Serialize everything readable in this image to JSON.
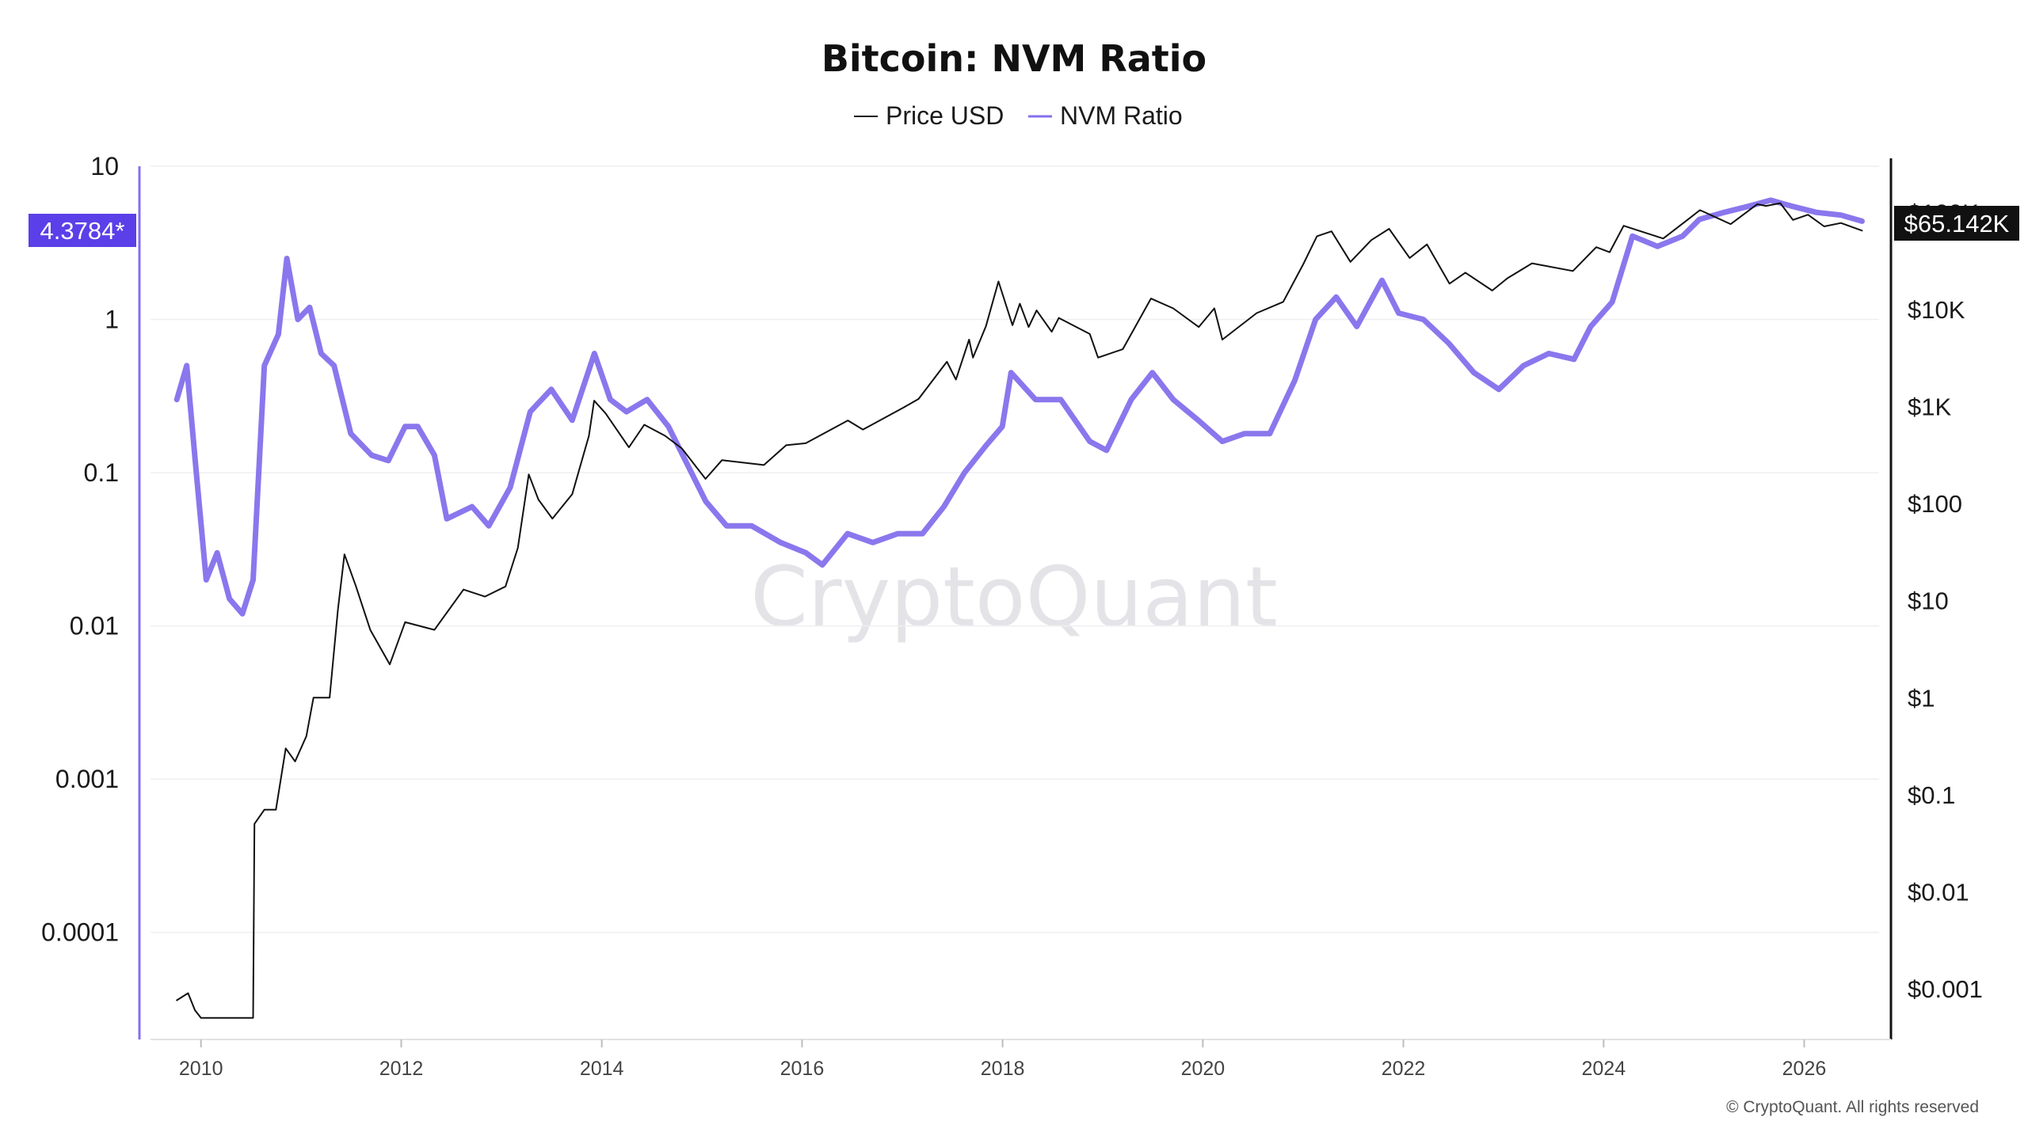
{
  "chart_data": {
    "type": "line",
    "title": "Bitcoin: NVM Ratio",
    "watermark": "CryptoQuant",
    "copyright": "© CryptoQuant. All rights reserved",
    "legend_placement": "top-center",
    "grid": true,
    "x_axis": {
      "type": "date",
      "range": [
        "2009-07-01",
        "2026-10-01"
      ],
      "ticks": [
        "2010",
        "2012",
        "2014",
        "2016",
        "2018",
        "2020",
        "2022",
        "2024",
        "2026"
      ]
    },
    "y_left": {
      "scale": "log",
      "range": [
        2e-05,
        10
      ],
      "ticks": [
        {
          "value": 10,
          "label": "10"
        },
        {
          "value": 1,
          "label": "1"
        },
        {
          "value": 0.1,
          "label": "0.1"
        },
        {
          "value": 0.01,
          "label": "0.01"
        },
        {
          "value": 0.001,
          "label": "0.001"
        },
        {
          "value": 0.0001,
          "label": "0.0001"
        }
      ],
      "current_badge": {
        "value": 4.3784,
        "label": "4.3784*",
        "color": "#5b3fe8"
      }
    },
    "y_right": {
      "scale": "log",
      "range": [
        0.0003,
        300000
      ],
      "ticks": [
        {
          "value": 100000,
          "label": "$100K"
        },
        {
          "value": 10000,
          "label": "$10K"
        },
        {
          "value": 1000,
          "label": "$1K"
        },
        {
          "value": 100,
          "label": "$100"
        },
        {
          "value": 10,
          "label": "$10"
        },
        {
          "value": 1,
          "label": "$1"
        },
        {
          "value": 0.1,
          "label": "$0.1"
        },
        {
          "value": 0.01,
          "label": "$0.01"
        },
        {
          "value": 0.001,
          "label": "$0.001"
        }
      ],
      "current_badge": {
        "value": 65142,
        "label": "$65.142K",
        "color": "#111111"
      }
    },
    "series": [
      {
        "name": "Price USD",
        "axis": "right",
        "color": "#111111",
        "style": "line",
        "points": [
          [
            "2009-10-05",
            0.00076
          ],
          [
            "2009-11-15",
            0.0009
          ],
          [
            "2009-12-10",
            0.0006
          ],
          [
            "2010-01-01",
            0.0005
          ],
          [
            "2010-03-01",
            0.0005
          ],
          [
            "2010-07-10",
            0.0005
          ],
          [
            "2010-07-15",
            0.05
          ],
          [
            "2010-08-20",
            0.07
          ],
          [
            "2010-10-01",
            0.07
          ],
          [
            "2010-11-06",
            0.3
          ],
          [
            "2010-12-10",
            0.22
          ],
          [
            "2011-01-20",
            0.4
          ],
          [
            "2011-02-15",
            1
          ],
          [
            "2011-04-15",
            1.0
          ],
          [
            "2011-05-15",
            8
          ],
          [
            "2011-06-08",
            30
          ],
          [
            "2011-07-20",
            14
          ],
          [
            "2011-09-10",
            5
          ],
          [
            "2011-11-20",
            2.2
          ],
          [
            "2012-01-15",
            6
          ],
          [
            "2012-05-01",
            5
          ],
          [
            "2012-08-15",
            13
          ],
          [
            "2012-11-01",
            11
          ],
          [
            "2013-01-15",
            14
          ],
          [
            "2013-03-01",
            35
          ],
          [
            "2013-04-10",
            200
          ],
          [
            "2013-05-15",
            110
          ],
          [
            "2013-07-05",
            70
          ],
          [
            "2013-09-15",
            125
          ],
          [
            "2013-11-15",
            500
          ],
          [
            "2013-12-04",
            1150
          ],
          [
            "2014-01-15",
            850
          ],
          [
            "2014-04-10",
            380
          ],
          [
            "2014-06-05",
            650
          ],
          [
            "2014-08-20",
            500
          ],
          [
            "2014-10-20",
            370
          ],
          [
            "2015-01-14",
            180
          ],
          [
            "2015-03-15",
            280
          ],
          [
            "2015-08-15",
            250
          ],
          [
            "2015-11-04",
            400
          ],
          [
            "2016-01-15",
            420
          ],
          [
            "2016-06-16",
            720
          ],
          [
            "2016-08-10",
            580
          ],
          [
            "2016-12-31",
            960
          ],
          [
            "2017-03-01",
            1200
          ],
          [
            "2017-06-12",
            2900
          ],
          [
            "2017-07-15",
            1900
          ],
          [
            "2017-09-01",
            4900
          ],
          [
            "2017-09-15",
            3200
          ],
          [
            "2017-11-01",
            6700
          ],
          [
            "2017-12-17",
            19500
          ],
          [
            "2018-02-06",
            6900
          ],
          [
            "2018-03-05",
            11500
          ],
          [
            "2018-04-06",
            6600
          ],
          [
            "2018-05-05",
            9800
          ],
          [
            "2018-06-29",
            5900
          ],
          [
            "2018-07-25",
            8200
          ],
          [
            "2018-11-15",
            5600
          ],
          [
            "2018-12-15",
            3200
          ],
          [
            "2019-03-15",
            3900
          ],
          [
            "2019-06-26",
            13000
          ],
          [
            "2019-09-15",
            10300
          ],
          [
            "2019-12-17",
            6600
          ],
          [
            "2020-02-12",
            10300
          ],
          [
            "2020-03-12",
            4900
          ],
          [
            "2020-07-15",
            9200
          ],
          [
            "2020-10-20",
            12000
          ],
          [
            "2020-12-31",
            29000
          ],
          [
            "2021-02-20",
            57000
          ],
          [
            "2021-04-14",
            64000
          ],
          [
            "2021-06-22",
            31000
          ],
          [
            "2021-09-06",
            52000
          ],
          [
            "2021-11-10",
            68000
          ],
          [
            "2022-01-24",
            34000
          ],
          [
            "2022-03-28",
            47000
          ],
          [
            "2022-06-18",
            18500
          ],
          [
            "2022-08-15",
            24000
          ],
          [
            "2022-11-21",
            15700
          ],
          [
            "2023-01-15",
            21000
          ],
          [
            "2023-04-15",
            30000
          ],
          [
            "2023-09-11",
            25000
          ],
          [
            "2023-12-05",
            44000
          ],
          [
            "2024-01-23",
            39000
          ],
          [
            "2024-03-14",
            73000
          ],
          [
            "2024-08-05",
            54000
          ],
          [
            "2024-11-15",
            90000
          ],
          [
            "2024-12-17",
            106000
          ],
          [
            "2025-04-08",
            76000
          ],
          [
            "2025-07-14",
            122000
          ],
          [
            "2025-08-15",
            117000
          ],
          [
            "2025-10-06",
            125000
          ],
          [
            "2025-11-21",
            84000
          ],
          [
            "2026-01-15",
            95000
          ],
          [
            "2026-03-15",
            72000
          ],
          [
            "2026-05-15",
            78000
          ],
          [
            "2026-07-31",
            65142
          ]
        ]
      },
      {
        "name": "NVM Ratio",
        "axis": "left",
        "color": "#8470ec",
        "style": "line",
        "points": [
          [
            "2009-10-05",
            0.3
          ],
          [
            "2009-11-10",
            0.5
          ],
          [
            "2009-12-15",
            0.1
          ],
          [
            "2010-01-20",
            0.02
          ],
          [
            "2010-03-01",
            0.03
          ],
          [
            "2010-04-15",
            0.015
          ],
          [
            "2010-06-01",
            0.012
          ],
          [
            "2010-07-10",
            0.02
          ],
          [
            "2010-08-20",
            0.5
          ],
          [
            "2010-10-10",
            0.8
          ],
          [
            "2010-11-10",
            2.5
          ],
          [
            "2010-12-20",
            1.0
          ],
          [
            "2011-02-01",
            1.2
          ],
          [
            "2011-03-15",
            0.6
          ],
          [
            "2011-05-01",
            0.5
          ],
          [
            "2011-07-01",
            0.18
          ],
          [
            "2011-09-15",
            0.13
          ],
          [
            "2011-11-15",
            0.12
          ],
          [
            "2012-01-15",
            0.2
          ],
          [
            "2012-03-01",
            0.2
          ],
          [
            "2012-05-01",
            0.13
          ],
          [
            "2012-06-15",
            0.05
          ],
          [
            "2012-09-15",
            0.06
          ],
          [
            "2012-11-15",
            0.045
          ],
          [
            "2013-02-01",
            0.08
          ],
          [
            "2013-04-15",
            0.25
          ],
          [
            "2013-07-01",
            0.35
          ],
          [
            "2013-09-15",
            0.22
          ],
          [
            "2013-12-05",
            0.6
          ],
          [
            "2014-02-01",
            0.3
          ],
          [
            "2014-04-01",
            0.25
          ],
          [
            "2014-06-15",
            0.3
          ],
          [
            "2014-09-01",
            0.2
          ],
          [
            "2015-01-15",
            0.065
          ],
          [
            "2015-04-01",
            0.045
          ],
          [
            "2015-07-01",
            0.045
          ],
          [
            "2015-10-15",
            0.035
          ],
          [
            "2016-01-15",
            0.03
          ],
          [
            "2016-03-15",
            0.025
          ],
          [
            "2016-06-15",
            0.04
          ],
          [
            "2016-09-15",
            0.035
          ],
          [
            "2016-12-15",
            0.04
          ],
          [
            "2017-03-15",
            0.04
          ],
          [
            "2017-06-01",
            0.06
          ],
          [
            "2017-08-15",
            0.1
          ],
          [
            "2017-11-01",
            0.15
          ],
          [
            "2017-12-31",
            0.2
          ],
          [
            "2018-02-01",
            0.45
          ],
          [
            "2018-05-01",
            0.3
          ],
          [
            "2018-08-01",
            0.3
          ],
          [
            "2018-11-15",
            0.16
          ],
          [
            "2019-01-15",
            0.14
          ],
          [
            "2019-04-15",
            0.3
          ],
          [
            "2019-07-01",
            0.45
          ],
          [
            "2019-09-15",
            0.3
          ],
          [
            "2019-12-15",
            0.22
          ],
          [
            "2020-03-12",
            0.16
          ],
          [
            "2020-06-01",
            0.18
          ],
          [
            "2020-09-01",
            0.18
          ],
          [
            "2020-12-01",
            0.4
          ],
          [
            "2021-02-15",
            1.0
          ],
          [
            "2021-05-01",
            1.4
          ],
          [
            "2021-07-15",
            0.9
          ],
          [
            "2021-10-15",
            1.8
          ],
          [
            "2021-12-15",
            1.1
          ],
          [
            "2022-03-15",
            1.0
          ],
          [
            "2022-06-15",
            0.7
          ],
          [
            "2022-09-15",
            0.45
          ],
          [
            "2022-12-15",
            0.35
          ],
          [
            "2023-03-15",
            0.5
          ],
          [
            "2023-06-15",
            0.6
          ],
          [
            "2023-09-15",
            0.55
          ],
          [
            "2023-11-15",
            0.9
          ],
          [
            "2024-02-01",
            1.3
          ],
          [
            "2024-04-15",
            3.5
          ],
          [
            "2024-07-15",
            3.0
          ],
          [
            "2024-10-15",
            3.5
          ],
          [
            "2024-12-15",
            4.5
          ],
          [
            "2025-03-15",
            5.0
          ],
          [
            "2025-06-15",
            5.5
          ],
          [
            "2025-09-01",
            6.0
          ],
          [
            "2025-11-15",
            5.5
          ],
          [
            "2026-02-15",
            5.0
          ],
          [
            "2026-05-15",
            4.8
          ],
          [
            "2026-07-31",
            4.3784
          ]
        ]
      }
    ]
  }
}
